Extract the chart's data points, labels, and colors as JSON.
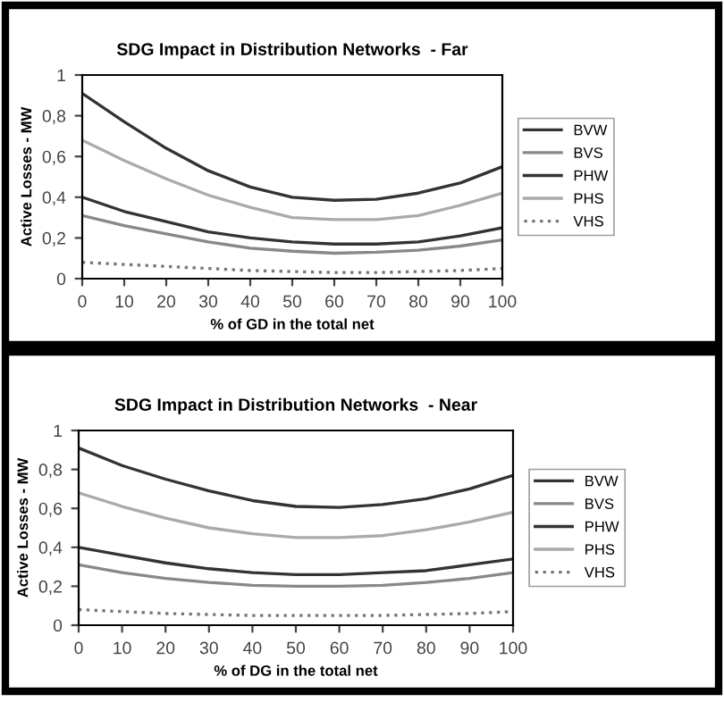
{
  "chart_data": [
    {
      "type": "line",
      "title": "SDG Impact in Distribution Networks  - Far",
      "xlabel": "% of GD in the total net",
      "ylabel": "Active Losses - MW",
      "x": [
        0,
        10,
        20,
        30,
        40,
        50,
        60,
        70,
        80,
        90,
        100
      ],
      "series": [
        {
          "name": "BVW",
          "color": "#333333",
          "line_style": "solid",
          "values": [
            0.4,
            0.33,
            0.28,
            0.23,
            0.2,
            0.18,
            0.17,
            0.17,
            0.18,
            0.21,
            0.25
          ]
        },
        {
          "name": "BVS",
          "color": "#888888",
          "line_style": "solid",
          "values": [
            0.31,
            0.26,
            0.22,
            0.18,
            0.15,
            0.135,
            0.125,
            0.13,
            0.14,
            0.16,
            0.19
          ]
        },
        {
          "name": "PHW",
          "color": "#333333",
          "line_style": "solid",
          "values": [
            0.91,
            0.77,
            0.64,
            0.53,
            0.45,
            0.4,
            0.385,
            0.39,
            0.42,
            0.47,
            0.55
          ]
        },
        {
          "name": "PHS",
          "color": "#aaaaaa",
          "line_style": "solid",
          "values": [
            0.68,
            0.58,
            0.49,
            0.41,
            0.35,
            0.3,
            0.29,
            0.29,
            0.31,
            0.36,
            0.42
          ]
        },
        {
          "name": "VHS",
          "color": "#777777",
          "line_style": "dotted",
          "values": [
            0.08,
            0.07,
            0.06,
            0.05,
            0.04,
            0.035,
            0.03,
            0.03,
            0.035,
            0.04,
            0.05
          ]
        }
      ],
      "xlim": [
        0,
        100
      ],
      "xticks": [
        0,
        10,
        20,
        30,
        40,
        50,
        60,
        70,
        80,
        90,
        100
      ],
      "ylim": [
        0,
        1
      ],
      "yticks": [
        0,
        {
          "value": 0.2,
          "label": "0,2"
        },
        {
          "value": 0.4,
          "label": "0,4"
        },
        {
          "value": 0.6,
          "label": "0,6"
        },
        {
          "value": 0.8,
          "label": "0,8"
        },
        1
      ],
      "grid": false,
      "legend": "right",
      "marker": "none"
    },
    {
      "type": "line",
      "title": "SDG Impact in Distribution Networks  - Near",
      "xlabel": "% of DG in the total net",
      "ylabel": "Active Losses - MW",
      "x": [
        0,
        10,
        20,
        30,
        40,
        50,
        60,
        70,
        80,
        90,
        100
      ],
      "series": [
        {
          "name": "BVW",
          "color": "#333333",
          "line_style": "solid",
          "values": [
            0.4,
            0.36,
            0.32,
            0.29,
            0.27,
            0.26,
            0.26,
            0.27,
            0.28,
            0.31,
            0.34
          ]
        },
        {
          "name": "BVS",
          "color": "#888888",
          "line_style": "solid",
          "values": [
            0.31,
            0.27,
            0.24,
            0.22,
            0.205,
            0.2,
            0.2,
            0.205,
            0.22,
            0.24,
            0.27
          ]
        },
        {
          "name": "PHW",
          "color": "#333333",
          "line_style": "solid",
          "values": [
            0.91,
            0.82,
            0.75,
            0.69,
            0.64,
            0.61,
            0.605,
            0.62,
            0.65,
            0.7,
            0.77
          ]
        },
        {
          "name": "PHS",
          "color": "#aaaaaa",
          "line_style": "solid",
          "values": [
            0.68,
            0.61,
            0.55,
            0.5,
            0.47,
            0.45,
            0.45,
            0.46,
            0.49,
            0.53,
            0.58
          ]
        },
        {
          "name": "VHS",
          "color": "#777777",
          "line_style": "dotted",
          "values": [
            0.08,
            0.07,
            0.06,
            0.055,
            0.05,
            0.05,
            0.05,
            0.05,
            0.055,
            0.06,
            0.07
          ]
        }
      ],
      "xlim": [
        0,
        100
      ],
      "xticks": [
        0,
        10,
        20,
        30,
        40,
        50,
        60,
        70,
        80,
        90,
        100
      ],
      "ylim": [
        0,
        1
      ],
      "yticks": [
        0,
        {
          "value": 0.2,
          "label": "0,2"
        },
        {
          "value": 0.4,
          "label": "0,4"
        },
        {
          "value": 0.6,
          "label": "0,6"
        },
        {
          "value": 0.8,
          "label": "0,8"
        },
        1
      ],
      "grid": false,
      "legend": "right",
      "marker": "none"
    }
  ]
}
